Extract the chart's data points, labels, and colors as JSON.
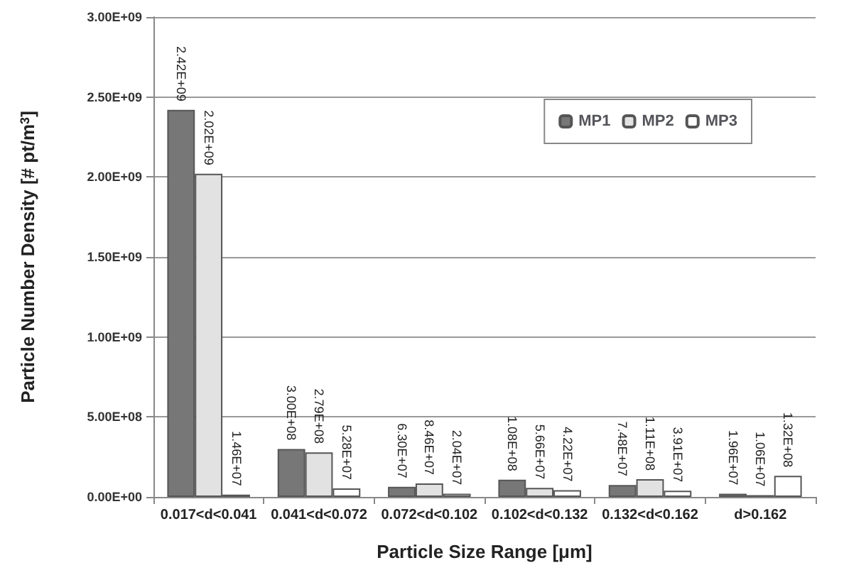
{
  "chart_data": {
    "type": "bar",
    "xlabel": "Particle Size Range [μm]",
    "ylabel": "Particle Number Density [# pt/m$^{3}$]",
    "categories": [
      "0.017<d<0.041",
      "0.041<d<0.072",
      "0.072<d<0.102",
      "0.102<d<0.132",
      "0.132<d<0.162",
      "d>0.162"
    ],
    "series": [
      {
        "name": "MP1",
        "color": "#777777",
        "values": [
          2420000000,
          300000000,
          63000000,
          108000000,
          74800000,
          19600000
        ],
        "value_labels": [
          "2.42E+09",
          "3.00E+08",
          "6.30E+07",
          "1.08E+08",
          "7.48E+07",
          "1.96E+07"
        ]
      },
      {
        "name": "MP2",
        "color": "#e2e2e2",
        "values": [
          2020000000,
          279000000,
          84600000,
          56600000,
          111000000,
          10600000
        ],
        "value_labels": [
          "2.02E+09",
          "2.79E+08",
          "8.46E+07",
          "5.66E+07",
          "1.11E+08",
          "1.06E+07"
        ]
      },
      {
        "name": "MP3",
        "color": "#ffffff",
        "values": [
          14600000,
          52800000,
          20400000,
          42200000,
          39100000,
          132000000
        ],
        "value_labels": [
          "1.46E+07",
          "5.28E+07",
          "2.04E+07",
          "4.22E+07",
          "3.91E+07",
          "1.32E+08"
        ]
      }
    ],
    "ylim": [
      0,
      3000000000
    ],
    "yticks": [
      {
        "value": 0,
        "label": "0.00E+00"
      },
      {
        "value": 500000000,
        "label": "5.00E+08"
      },
      {
        "value": 1000000000,
        "label": "1.00E+09"
      },
      {
        "value": 1500000000,
        "label": "1.50E+09"
      },
      {
        "value": 2000000000,
        "label": "2.00E+09"
      },
      {
        "value": 2500000000,
        "label": "2.50E+09"
      },
      {
        "value": 3000000000,
        "label": "3.00E+09"
      }
    ],
    "grid": "y",
    "legend": "top right"
  }
}
